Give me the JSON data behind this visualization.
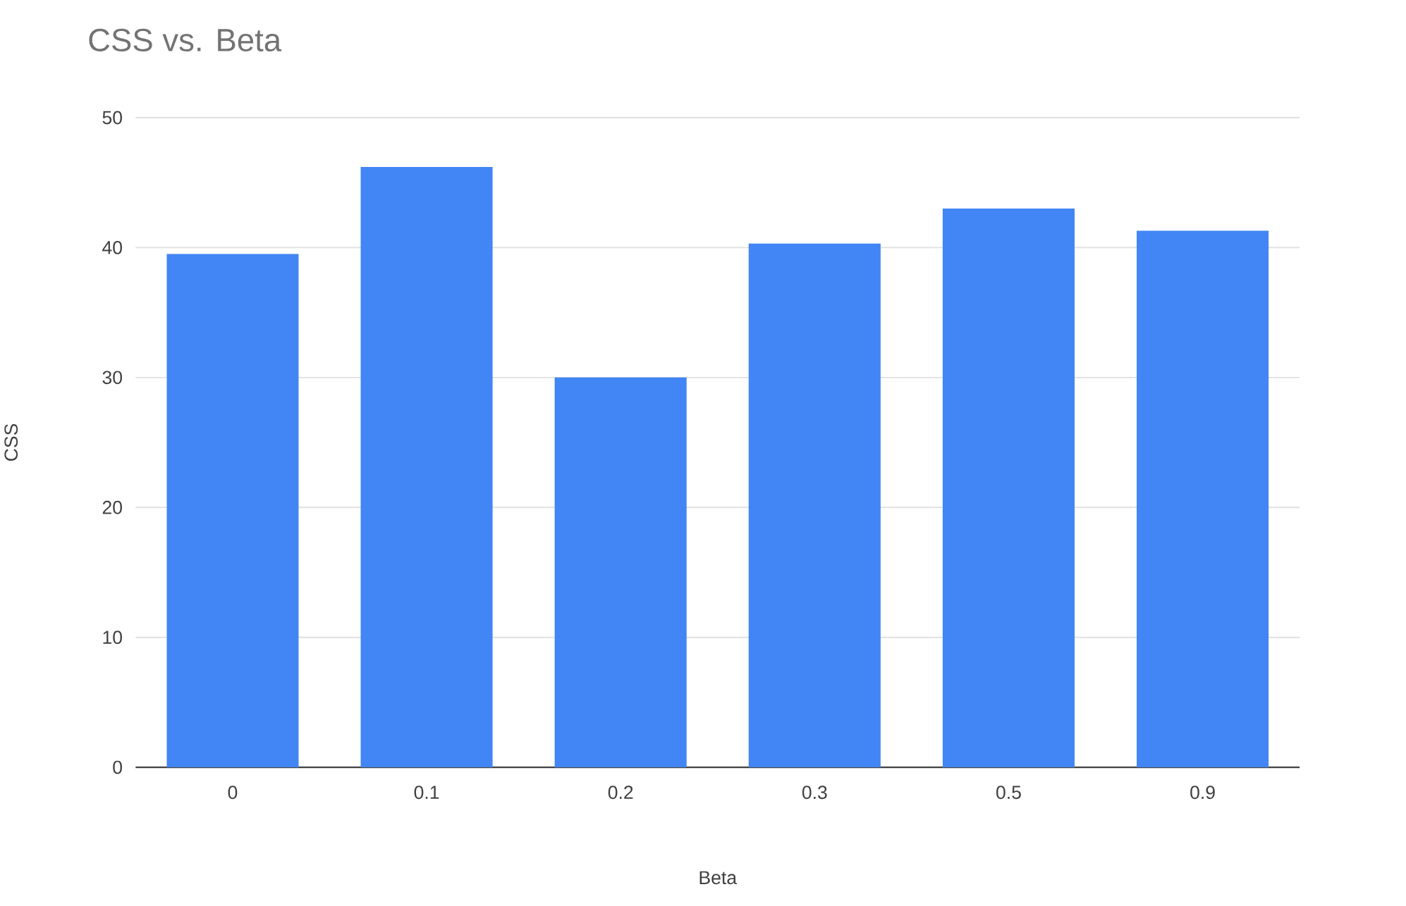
{
  "chart_data": {
    "type": "bar",
    "title": "CSS vs. Beta",
    "xlabel": "Beta",
    "ylabel": "CSS",
    "categories": [
      "0",
      "0.1",
      "0.2",
      "0.3",
      "0.5",
      "0.9"
    ],
    "values": [
      39.5,
      46.2,
      30,
      40.3,
      43,
      41.3
    ],
    "color": "#4285f4",
    "ylim": [
      0,
      50
    ],
    "yticks": [
      0,
      10,
      20,
      30,
      40,
      50
    ],
    "grid": "y"
  }
}
